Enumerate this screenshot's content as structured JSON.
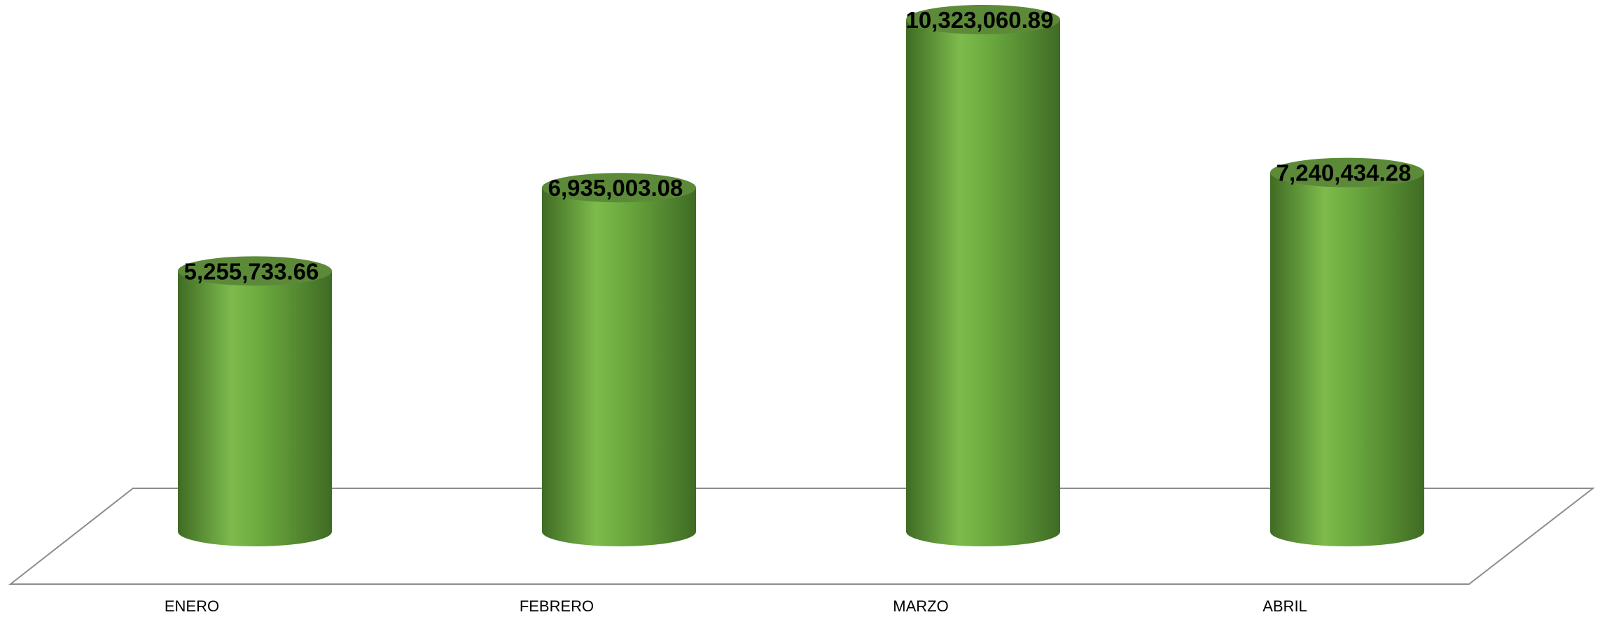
{
  "chart_data": {
    "type": "bar",
    "style": "3d-cylinder",
    "categories": [
      "ENERO",
      "FEBRERO",
      "MARZO",
      "ABRIL"
    ],
    "values": [
      5255733.66,
      6935003.08,
      10323060.89,
      7240434.28
    ],
    "data_labels": [
      "5,255,733.66",
      "6,935,003.08",
      "10,323,060.89",
      "7,240,434.28"
    ],
    "title": "",
    "xlabel": "",
    "ylabel": "",
    "ylim": [
      0,
      10323060.89
    ],
    "grid": false,
    "legend": "none",
    "colors": {
      "bar_light": "#7dbb4c",
      "bar_mid": "#6aa83e",
      "bar_dark": "#3f6b24",
      "bar_top": "#5c8a39",
      "floor_line": "#8c8c8c"
    }
  }
}
